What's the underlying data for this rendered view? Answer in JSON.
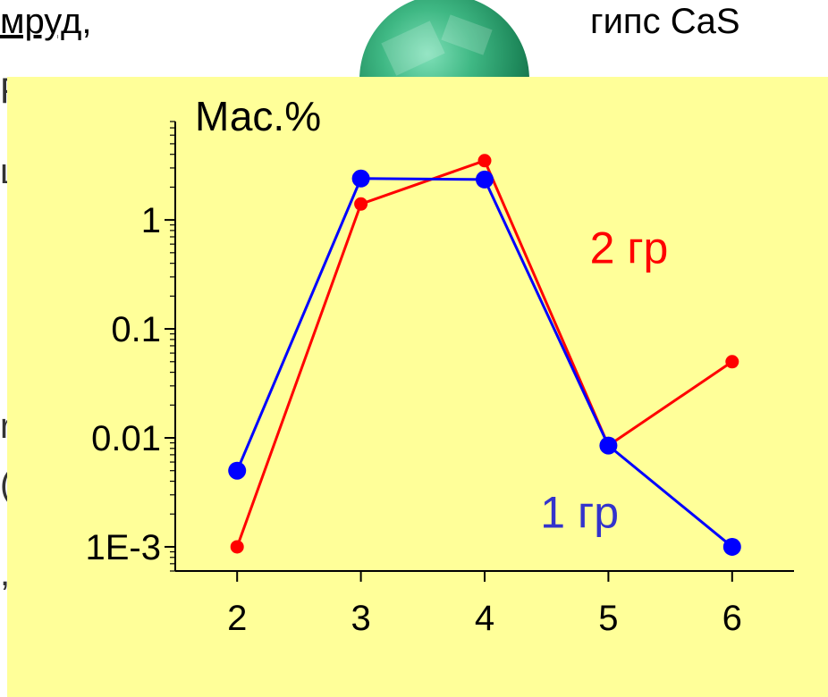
{
  "background_slide": {
    "left_text": "мруд",
    "left_text_suffix": ",",
    "right_text": "гипс CaS",
    "left_fragments": [
      "F",
      "ц",
      "r",
      "(",
      ","
    ],
    "gem": "emerald-gem"
  },
  "chart_data": {
    "type": "line",
    "ylabel": "Мас.%",
    "yscale": "log",
    "ylim": [
      0.0006,
      8
    ],
    "xlim": [
      1.5,
      6.5
    ],
    "x": [
      2,
      3,
      4,
      5,
      6
    ],
    "x_tick_labels": [
      "2",
      "3",
      "4",
      "5",
      "6"
    ],
    "y_ticks": [
      0.001,
      0.01,
      0.1,
      1
    ],
    "y_tick_labels": [
      "1E-3",
      "0.01",
      "0.1",
      "1"
    ],
    "series": [
      {
        "name": "2 гр",
        "color": "#ff0000",
        "values": [
          0.001,
          1.4,
          3.5,
          0.0085,
          0.05
        ]
      },
      {
        "name": "1 гр",
        "color": "#0000ff",
        "values": [
          0.005,
          2.4,
          2.35,
          0.0085,
          0.001
        ]
      }
    ],
    "annotations": [
      {
        "text": "2 гр",
        "color": "#ff0000",
        "x": 4.85,
        "y": 0.4
      },
      {
        "text": "1 гр",
        "color": "#3333cc",
        "x": 4.45,
        "y": 0.0015
      }
    ],
    "panel_color": "#ffff99",
    "grid": false,
    "legend": "none"
  }
}
